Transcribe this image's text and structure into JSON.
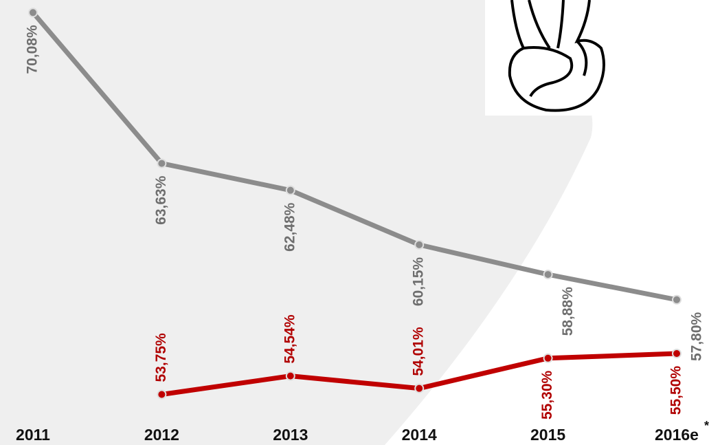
{
  "chart_data": {
    "type": "line",
    "categories": [
      "2011",
      "2012",
      "2013",
      "2014",
      "2015",
      "2016e"
    ],
    "footnote_mark": "*",
    "series": [
      {
        "name": null,
        "color": "#8c8c8c",
        "label_color": "#6e6e6e",
        "values": [
          70.08,
          63.63,
          62.48,
          60.15,
          58.88,
          57.8
        ],
        "value_labels": [
          "70,08%",
          "63,63%",
          "62,48%",
          "60,15%",
          "58,88%",
          "57,80%"
        ]
      },
      {
        "name": null,
        "color": "#c00000",
        "label_color": "#b00000",
        "values": [
          null,
          53.75,
          54.54,
          54.01,
          55.3,
          55.5
        ],
        "value_labels": [
          null,
          "53,75%",
          "54,54%",
          "54,01%",
          "55,30%",
          "55,50%"
        ]
      }
    ],
    "ylim": [
      52,
      70.5
    ],
    "grid": false
  }
}
